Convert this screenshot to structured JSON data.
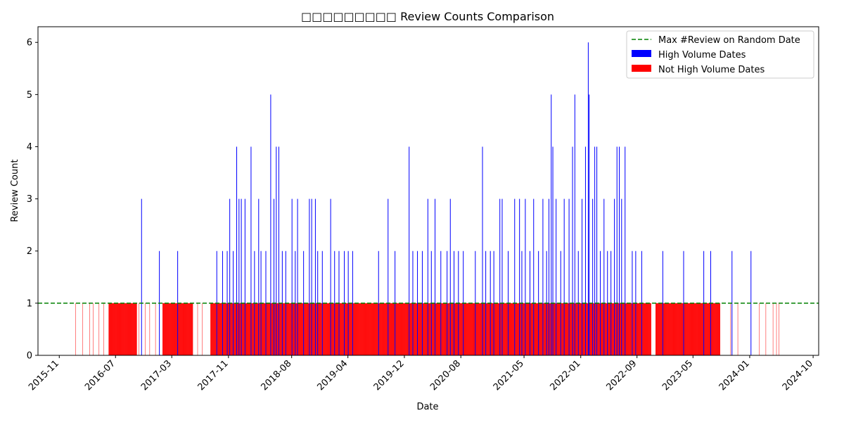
{
  "chart_data": {
    "type": "bar",
    "title": "Review Counts Comparison",
    "title_prefix_glyphs": "□□□□□□□□□",
    "xlabel": "Date",
    "ylabel": "Review Count",
    "x_range": [
      "2015-08-01",
      "2024-10-25"
    ],
    "ylim": [
      0,
      6.3
    ],
    "y_ticks": [
      0,
      1,
      2,
      3,
      4,
      5,
      6
    ],
    "x_ticks": [
      "2015-11",
      "2016-07",
      "2017-03",
      "2017-11",
      "2018-08",
      "2019-04",
      "2019-12",
      "2020-08",
      "2021-05",
      "2022-01",
      "2022-09",
      "2023-05",
      "2024-01",
      "2024-10"
    ],
    "legend_position": "top-right",
    "threshold": {
      "label": "Max #Review on Random Date",
      "value": 1,
      "color": "#008000",
      "style": "dashed"
    },
    "series": [
      {
        "name": "High Volume Dates",
        "color": "#0000ff",
        "points": [
          [
            "2016-10-20",
            3
          ],
          [
            "2017-01-05",
            2
          ],
          [
            "2017-03-25",
            2
          ],
          [
            "2017-09-10",
            2
          ],
          [
            "2017-10-05",
            2
          ],
          [
            "2017-10-25",
            2
          ],
          [
            "2017-11-05",
            3
          ],
          [
            "2017-11-20",
            2
          ],
          [
            "2017-12-05",
            4
          ],
          [
            "2017-12-15",
            3
          ],
          [
            "2017-12-25",
            3
          ],
          [
            "2018-01-10",
            3
          ],
          [
            "2018-02-05",
            4
          ],
          [
            "2018-02-20",
            2
          ],
          [
            "2018-03-10",
            3
          ],
          [
            "2018-03-20",
            2
          ],
          [
            "2018-04-10",
            2
          ],
          [
            "2018-05-01",
            5
          ],
          [
            "2018-05-15",
            3
          ],
          [
            "2018-05-25",
            4
          ],
          [
            "2018-06-05",
            4
          ],
          [
            "2018-06-20",
            2
          ],
          [
            "2018-07-05",
            2
          ],
          [
            "2018-08-01",
            3
          ],
          [
            "2018-08-15",
            2
          ],
          [
            "2018-08-25",
            3
          ],
          [
            "2018-09-20",
            2
          ],
          [
            "2018-10-15",
            3
          ],
          [
            "2018-10-25",
            3
          ],
          [
            "2018-11-10",
            3
          ],
          [
            "2018-11-20",
            2
          ],
          [
            "2018-12-10",
            2
          ],
          [
            "2019-01-15",
            3
          ],
          [
            "2019-02-01",
            2
          ],
          [
            "2019-02-20",
            2
          ],
          [
            "2019-03-15",
            2
          ],
          [
            "2019-04-01",
            2
          ],
          [
            "2019-04-20",
            2
          ],
          [
            "2019-08-10",
            2
          ],
          [
            "2019-09-20",
            3
          ],
          [
            "2019-10-20",
            2
          ],
          [
            "2019-12-20",
            4
          ],
          [
            "2020-01-05",
            2
          ],
          [
            "2020-01-25",
            2
          ],
          [
            "2020-02-15",
            2
          ],
          [
            "2020-03-10",
            3
          ],
          [
            "2020-03-25",
            2
          ],
          [
            "2020-04-10",
            3
          ],
          [
            "2020-05-05",
            2
          ],
          [
            "2020-06-01",
            2
          ],
          [
            "2020-06-15",
            3
          ],
          [
            "2020-07-01",
            2
          ],
          [
            "2020-07-20",
            2
          ],
          [
            "2020-08-10",
            2
          ],
          [
            "2020-10-01",
            2
          ],
          [
            "2020-11-01",
            4
          ],
          [
            "2020-11-15",
            2
          ],
          [
            "2020-12-05",
            2
          ],
          [
            "2020-12-20",
            2
          ],
          [
            "2021-01-15",
            3
          ],
          [
            "2021-01-25",
            3
          ],
          [
            "2021-02-20",
            2
          ],
          [
            "2021-03-20",
            3
          ],
          [
            "2021-04-10",
            3
          ],
          [
            "2021-04-20",
            2
          ],
          [
            "2021-05-05",
            3
          ],
          [
            "2021-05-25",
            2
          ],
          [
            "2021-06-10",
            3
          ],
          [
            "2021-07-01",
            2
          ],
          [
            "2021-07-20",
            3
          ],
          [
            "2021-08-05",
            2
          ],
          [
            "2021-08-15",
            3
          ],
          [
            "2021-08-25",
            5
          ],
          [
            "2021-09-01",
            4
          ],
          [
            "2021-09-15",
            3
          ],
          [
            "2021-10-05",
            2
          ],
          [
            "2021-10-20",
            3
          ],
          [
            "2021-11-10",
            3
          ],
          [
            "2021-11-25",
            4
          ],
          [
            "2021-12-05",
            5
          ],
          [
            "2021-12-20",
            2
          ],
          [
            "2022-01-05",
            3
          ],
          [
            "2022-01-20",
            4
          ],
          [
            "2022-02-01",
            6
          ],
          [
            "2022-02-05",
            5
          ],
          [
            "2022-02-20",
            3
          ],
          [
            "2022-03-01",
            4
          ],
          [
            "2022-03-10",
            4
          ],
          [
            "2022-03-25",
            2
          ],
          [
            "2022-04-10",
            3
          ],
          [
            "2022-04-25",
            2
          ],
          [
            "2022-05-10",
            2
          ],
          [
            "2022-05-25",
            3
          ],
          [
            "2022-06-05",
            4
          ],
          [
            "2022-06-15",
            4
          ],
          [
            "2022-06-25",
            3
          ],
          [
            "2022-07-10",
            4
          ],
          [
            "2022-08-10",
            2
          ],
          [
            "2022-08-25",
            2
          ],
          [
            "2022-09-20",
            2
          ],
          [
            "2022-12-20",
            2
          ],
          [
            "2023-03-20",
            2
          ],
          [
            "2023-06-15",
            2
          ],
          [
            "2023-07-15",
            2
          ],
          [
            "2023-10-15",
            2
          ],
          [
            "2024-01-05",
            2
          ]
        ]
      },
      {
        "name": "Not High Volume Dates",
        "color": "#ff0000",
        "value": 1,
        "ranges": [
          [
            "2016-06-01",
            "2016-09-30"
          ],
          [
            "2017-01-20",
            "2017-05-30"
          ],
          [
            "2017-08-15",
            "2022-10-31"
          ],
          [
            "2022-11-20",
            "2023-08-25"
          ]
        ],
        "scattered_dates": [
          "2016-01-10",
          "2016-02-10",
          "2016-03-10",
          "2016-03-25",
          "2016-04-20",
          "2016-05-10",
          "2016-10-10",
          "2016-11-05",
          "2016-11-25",
          "2016-12-20",
          "2017-06-20",
          "2017-07-10",
          "2023-10-10",
          "2023-11-10",
          "2024-02-10",
          "2024-03-10",
          "2024-04-10",
          "2024-04-25",
          "2024-05-05"
        ]
      }
    ]
  }
}
